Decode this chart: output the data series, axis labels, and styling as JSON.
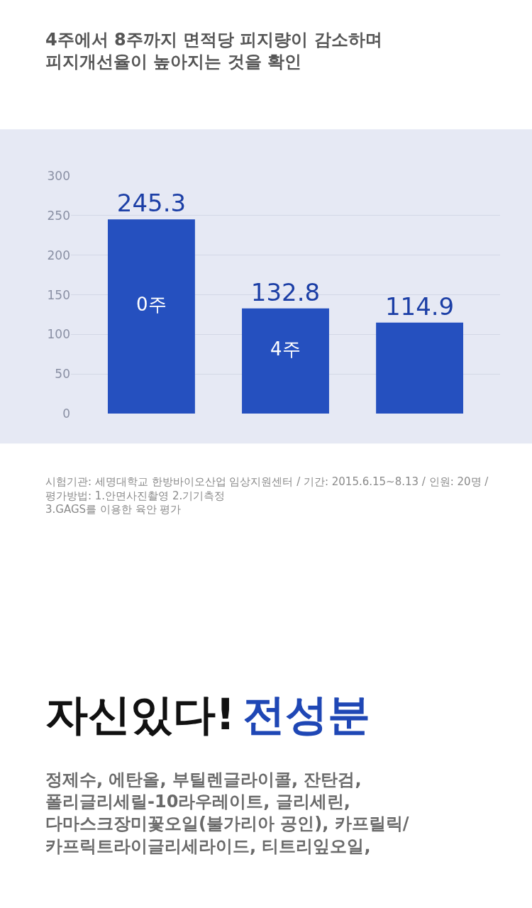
{
  "chart_data": {
    "type": "bar",
    "title": "4주에서 8주까지 면적당 피지량이 감소하며\n피지개선율이 높아지는 것을 확인",
    "categories": [
      "0주",
      "4주",
      null
    ],
    "values": [
      245.3,
      132.8,
      114.9
    ],
    "colors": [
      "#2550bf",
      "#2550bf",
      "#2550bf"
    ],
    "data_labels": true,
    "ylim": [
      0,
      300
    ],
    "yticks": [
      0,
      50,
      100,
      150,
      200,
      250,
      300
    ],
    "grid": "y",
    "tick_labels": "y",
    "annotations": [
      "시험기관: 세명대학교 한방바이오산업 임상지원센터 / 기간: 2015.6.15~8.13 / 인원: 20명 /\n평가방법: 1.안면사진촬영 2.기기측정\n3.GAGS를 이용한 육안 평가",
      "자신있다!",
      "전성분",
      "정제수, 에탄올, 부틸렌글라이콜, 잔탄검,\n폴리글리세릴-10라우레이트, 글리세린,\n다마스크장미꽃오일(불가리아 공인), 카프릴릭/\n카프릭트라이글리세라이드, 티트리잎오일,"
    ]
  }
}
